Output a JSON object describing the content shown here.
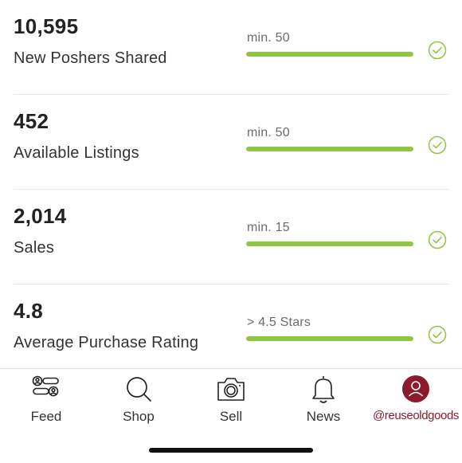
{
  "colors": {
    "progress": "#8dc63f",
    "check": "#8dc63f",
    "active_tab": "#8c1c2c"
  },
  "stats": [
    {
      "value": "10,595",
      "label": "New Poshers Shared",
      "requirement": "min. 50",
      "progress": 1.0,
      "status_icon": "check-circle-icon"
    },
    {
      "value": "452",
      "label": "Available Listings",
      "requirement": "min. 50",
      "progress": 1.0,
      "status_icon": "check-circle-icon"
    },
    {
      "value": "2,014",
      "label": "Sales",
      "requirement": "min. 15",
      "progress": 1.0,
      "status_icon": "check-circle-icon"
    },
    {
      "value": "4.8",
      "label": "Average Purchase Rating",
      "requirement": "> 4.5 Stars",
      "progress": 1.0,
      "status_icon": "check-circle-icon"
    }
  ],
  "nav": {
    "tabs": [
      {
        "label": "Feed",
        "icon": "feed-icon",
        "active": false
      },
      {
        "label": "Shop",
        "icon": "search-icon",
        "active": false
      },
      {
        "label": "Sell",
        "icon": "camera-icon",
        "active": false
      },
      {
        "label": "News",
        "icon": "bell-icon",
        "active": false
      },
      {
        "label": "@reuseoldgoods",
        "icon": "profile-avatar-icon",
        "active": true
      }
    ]
  }
}
